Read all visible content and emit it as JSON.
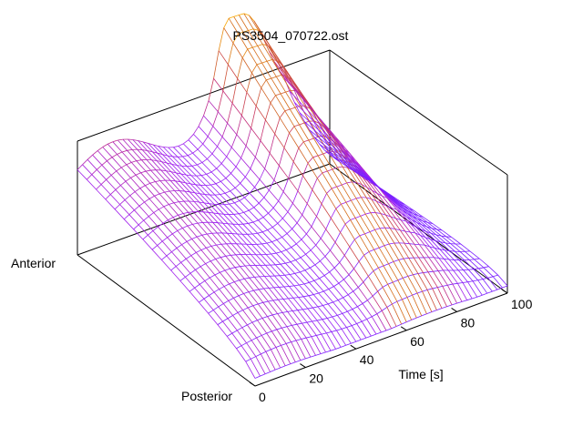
{
  "chart_data": {
    "type": "surface",
    "title": "PS3504_070722.ost",
    "xlabel": "Time [s]",
    "y_axis_labels": {
      "start": "Posterior",
      "end": "Anterior"
    },
    "xlim": [
      0,
      100
    ],
    "x_ticks": [
      0,
      20,
      40,
      60,
      80,
      100
    ],
    "grid": false,
    "legend": "none",
    "colormap": [
      "#7b1fff",
      "#a020f0",
      "#c8306b",
      "#d2691e",
      "#ffb000"
    ],
    "sampling": {
      "time_samples": 51,
      "position_samples": 20
    },
    "description_values": {
      "baseline_anterior": 0.55,
      "baseline_posterior": 0.05,
      "peak_time": 65,
      "peak_height": 1.0,
      "drop_time": 82
    }
  }
}
